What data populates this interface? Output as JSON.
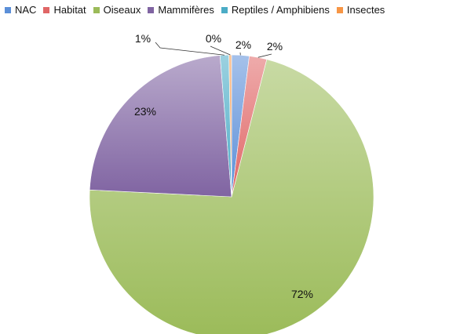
{
  "chart_data": {
    "type": "pie",
    "title": "",
    "legend_position": "top",
    "categories": [
      "NAC",
      "Habitat",
      "Oiseaux",
      "Mammifères",
      "Reptiles / Amphibiens",
      "Insectes"
    ],
    "values": [
      2,
      2,
      72,
      23,
      1,
      0
    ],
    "labels": [
      "2%",
      "2%",
      "72%",
      "23%",
      "1%",
      "0%"
    ],
    "colors": [
      "#5b8fd8",
      "#e06666",
      "#9bbb59",
      "#8064a2",
      "#4bacc6",
      "#f79646"
    ]
  }
}
